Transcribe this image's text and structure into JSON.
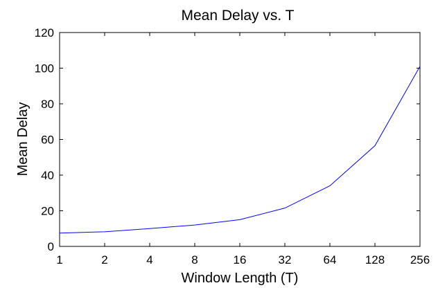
{
  "chart_data": {
    "type": "line",
    "title": "Mean Delay  vs. T",
    "xlabel": "Window Length (T)",
    "ylabel": "Mean Delay",
    "x_scale": "log2",
    "x_ticks": [
      "1",
      "2",
      "4",
      "8",
      "16",
      "32",
      "64",
      "128",
      "256"
    ],
    "y_ticks": [
      "0",
      "20",
      "40",
      "60",
      "80",
      "100",
      "120"
    ],
    "xlim": [
      1,
      256
    ],
    "ylim": [
      0,
      120
    ],
    "grid": false,
    "series": [
      {
        "color": "#0000ff",
        "x": [
          1,
          2,
          4,
          8,
          16,
          32,
          64,
          128,
          256
        ],
        "values": [
          7.5,
          8.2,
          10.0,
          12.0,
          15.0,
          21.5,
          34.0,
          56.5,
          101.0
        ]
      }
    ]
  }
}
